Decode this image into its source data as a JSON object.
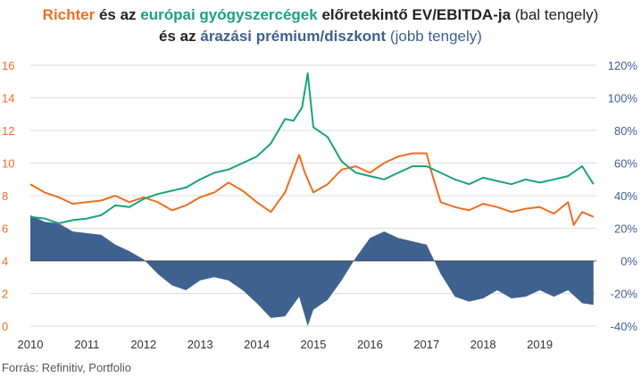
{
  "colors": {
    "richter": "#F26C21",
    "sector": "#1AA37A",
    "premium": "#3F6190",
    "text": "#222222",
    "tick_left": "#F26C21",
    "tick_right": "#3F6190",
    "grid": "#DDDDDD"
  },
  "chart_data": {
    "type": "line+area",
    "title": {
      "line1": [
        {
          "text": "Richter",
          "color": "richter",
          "bold": true
        },
        {
          "text": " és az ",
          "color": "text",
          "bold": true
        },
        {
          "text": "európai gyógyszercégek",
          "color": "sector",
          "bold": true
        },
        {
          "text": " előretekintő EV/EBITDA-ja",
          "color": "text",
          "bold": true
        },
        {
          "text": " (bal tengely)",
          "color": "text",
          "bold": false
        }
      ],
      "line2": [
        {
          "text": "és az ",
          "color": "text",
          "bold": true
        },
        {
          "text": "árazási prémium/diszkont",
          "color": "premium",
          "bold": true
        },
        {
          "text": " (jobb tengely)",
          "color": "premium",
          "bold": false
        }
      ]
    },
    "source": "Forrás: Refinitiv, Portfolio",
    "x_ticks": [
      "2010",
      "2011",
      "2012",
      "2013",
      "2014",
      "2015",
      "2016",
      "2017",
      "2018",
      "2019"
    ],
    "xlim": [
      2010.0,
      2020.0
    ],
    "y_left": {
      "ticks": [
        "0",
        "2",
        "4",
        "6",
        "8",
        "10",
        "12",
        "14",
        "16"
      ],
      "range": [
        0,
        16
      ]
    },
    "y_right": {
      "ticks": [
        "-40%",
        "-20%",
        "0%",
        "20%",
        "40%",
        "60%",
        "80%",
        "100%",
        "120%"
      ],
      "range": [
        -40,
        120
      ]
    },
    "grid": true,
    "series": [
      {
        "name": "Richter",
        "axis": "left",
        "color": "richter",
        "x": [
          2010.0,
          2010.25,
          2010.5,
          2010.75,
          2011.0,
          2011.25,
          2011.5,
          2011.75,
          2012.0,
          2012.25,
          2012.5,
          2012.75,
          2013.0,
          2013.25,
          2013.5,
          2013.75,
          2014.0,
          2014.25,
          2014.5,
          2014.75,
          2014.85,
          2015.0,
          2015.25,
          2015.5,
          2015.75,
          2016.0,
          2016.25,
          2016.5,
          2016.75,
          2017.0,
          2017.1,
          2017.25,
          2017.5,
          2017.75,
          2018.0,
          2018.25,
          2018.5,
          2018.75,
          2019.0,
          2019.25,
          2019.5,
          2019.6,
          2019.75,
          2019.95
        ],
        "y": [
          8.7,
          8.2,
          7.9,
          7.5,
          7.6,
          7.7,
          8.0,
          7.6,
          7.9,
          7.6,
          7.1,
          7.4,
          7.9,
          8.2,
          8.8,
          8.3,
          7.6,
          7.0,
          8.2,
          10.5,
          9.4,
          8.2,
          8.7,
          9.6,
          9.8,
          9.4,
          10.0,
          10.4,
          10.6,
          10.6,
          9.3,
          7.6,
          7.3,
          7.1,
          7.5,
          7.3,
          7.0,
          7.2,
          7.3,
          6.9,
          7.6,
          6.2,
          7.0,
          6.7
        ]
      },
      {
        "name": "Európai gyógyszercégek",
        "axis": "left",
        "color": "sector",
        "x": [
          2010.0,
          2010.25,
          2010.5,
          2010.75,
          2011.0,
          2011.25,
          2011.5,
          2011.75,
          2012.0,
          2012.25,
          2012.5,
          2012.75,
          2013.0,
          2013.25,
          2013.5,
          2013.75,
          2014.0,
          2014.25,
          2014.5,
          2014.65,
          2014.8,
          2014.9,
          2015.0,
          2015.25,
          2015.5,
          2015.75,
          2016.0,
          2016.25,
          2016.5,
          2016.75,
          2017.0,
          2017.25,
          2017.5,
          2017.75,
          2018.0,
          2018.25,
          2018.5,
          2018.75,
          2019.0,
          2019.25,
          2019.5,
          2019.75,
          2019.95
        ],
        "y": [
          6.7,
          6.6,
          6.3,
          6.5,
          6.6,
          6.8,
          7.4,
          7.3,
          7.8,
          8.1,
          8.3,
          8.5,
          9.0,
          9.4,
          9.6,
          10.0,
          10.4,
          11.2,
          12.7,
          12.6,
          13.4,
          15.5,
          12.2,
          11.6,
          10.1,
          9.4,
          9.2,
          9.0,
          9.4,
          9.8,
          9.8,
          9.4,
          9.0,
          8.7,
          9.1,
          8.9,
          8.7,
          9.0,
          8.8,
          9.0,
          9.2,
          9.8,
          8.7
        ]
      },
      {
        "name": "Árazási prémium/diszkont",
        "axis": "right",
        "color": "premium",
        "type": "area",
        "x": [
          2010.0,
          2010.25,
          2010.5,
          2010.75,
          2011.0,
          2011.25,
          2011.5,
          2011.75,
          2012.0,
          2012.25,
          2012.5,
          2012.75,
          2013.0,
          2013.25,
          2013.5,
          2013.75,
          2014.0,
          2014.25,
          2014.5,
          2014.75,
          2014.9,
          2015.0,
          2015.25,
          2015.5,
          2015.75,
          2016.0,
          2016.25,
          2016.5,
          2016.75,
          2017.0,
          2017.25,
          2017.5,
          2017.75,
          2018.0,
          2018.25,
          2018.5,
          2018.75,
          2019.0,
          2019.25,
          2019.5,
          2019.75,
          2019.95
        ],
        "y": [
          28,
          24,
          23,
          18,
          17,
          16,
          10,
          6,
          1,
          -8,
          -15,
          -18,
          -12,
          -10,
          -12,
          -18,
          -26,
          -35,
          -34,
          -22,
          -40,
          -30,
          -24,
          -12,
          2,
          14,
          18,
          14,
          12,
          10,
          -8,
          -22,
          -25,
          -23,
          -18,
          -23,
          -22,
          -18,
          -22,
          -18,
          -26,
          -27
        ]
      }
    ]
  }
}
